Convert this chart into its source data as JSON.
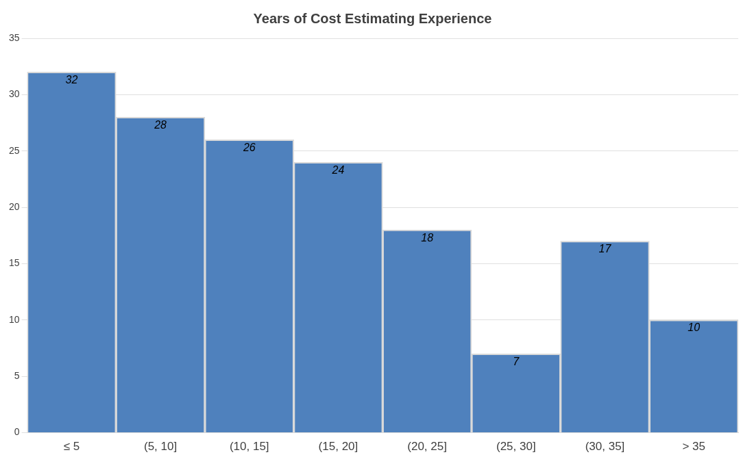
{
  "chart_data": {
    "type": "bar",
    "title": "Years of Cost Estimating Experience",
    "categories": [
      "≤ 5",
      "(5, 10]",
      "(10, 15]",
      "(15, 20]",
      "(20, 25]",
      "(25, 30]",
      "(30, 35]",
      "> 35"
    ],
    "values": [
      32,
      28,
      26,
      24,
      18,
      7,
      17,
      10
    ],
    "color": "#4f81bd",
    "ylim": [
      0,
      35
    ],
    "yticks": [
      0,
      5,
      10,
      15,
      20,
      25,
      30,
      35
    ],
    "grid": "y",
    "data_labels": true
  }
}
